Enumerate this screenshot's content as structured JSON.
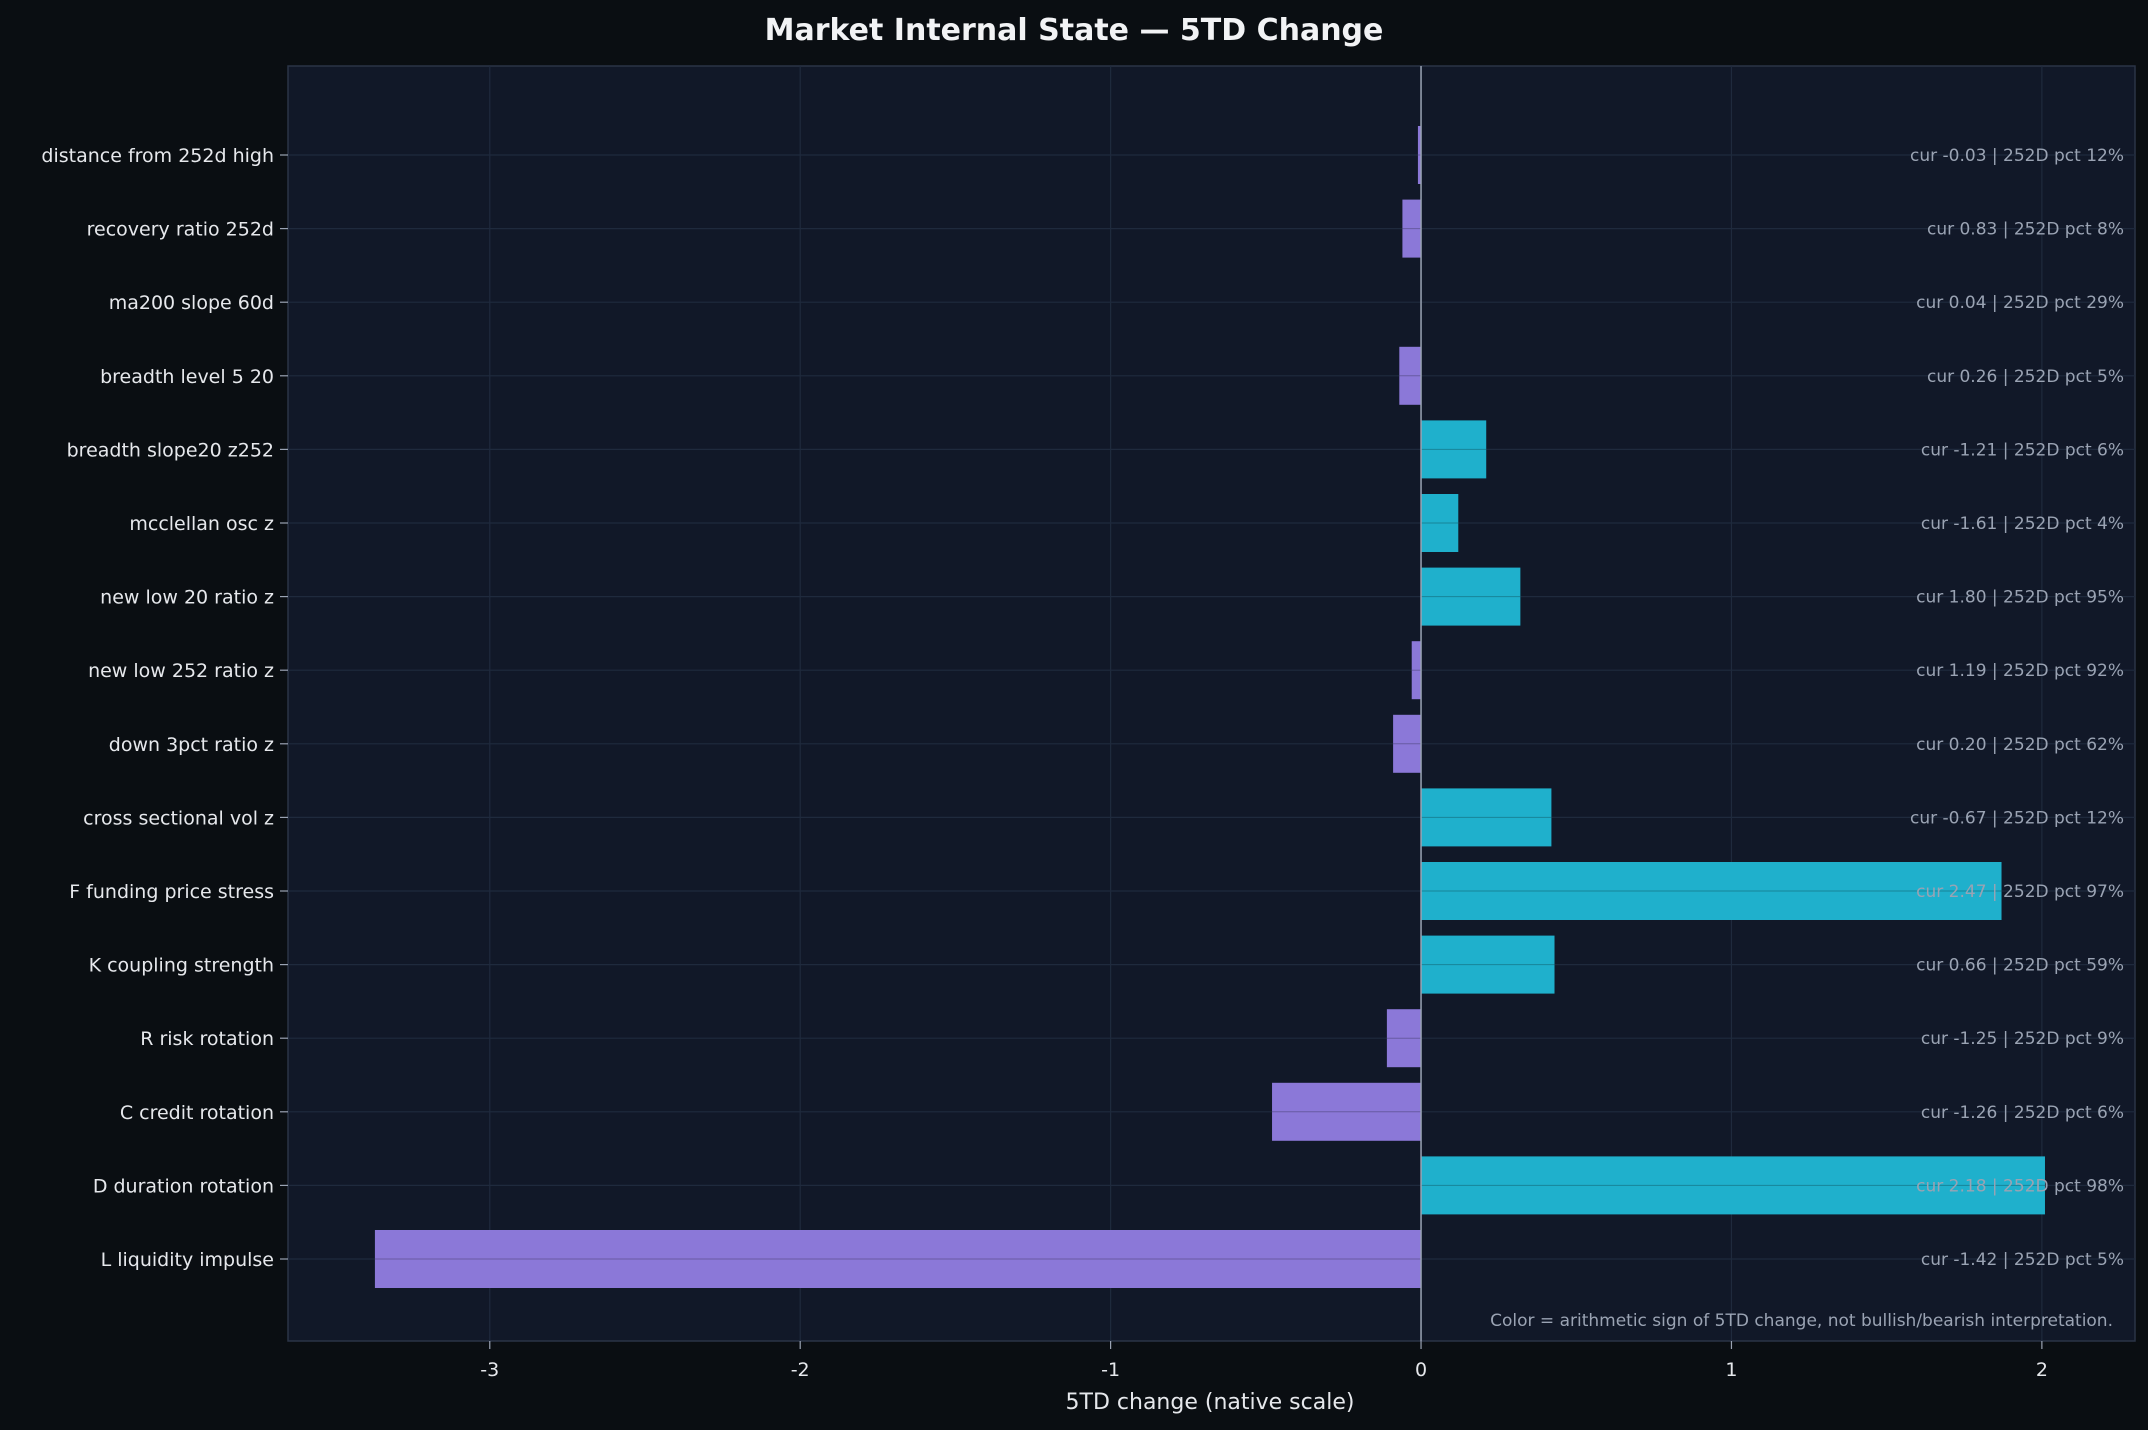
{
  "chart_data": {
    "type": "bar",
    "orientation": "horizontal",
    "title": "Market Internal State — 5TD Change",
    "xlabel": "5TD change (native scale)",
    "ylabel": "",
    "xlim": [
      -3.65,
      2.3
    ],
    "x_ticks": [
      -3,
      -2,
      -1,
      0,
      1,
      2
    ],
    "grid": true,
    "footnote": "Color = arithmetic sign of 5TD change, not bullish/bearish interpretation.",
    "colors": {
      "background": "#0a0e12",
      "plot_background": "#111828",
      "positive": "#1fb0cc",
      "negative": "#8b78d8",
      "grid": "#1f2a3d",
      "text": "#e6e8ec",
      "annotation": "#9aa3b3"
    },
    "categories": [
      "distance from 252d high",
      "recovery ratio 252d",
      "ma200 slope 60d",
      "breadth level 5 20",
      "breadth slope20 z252",
      "mcclellan osc z",
      "new low 20 ratio z",
      "new low 252 ratio z",
      "down 3pct ratio z",
      "cross sectional vol z",
      "F funding price stress",
      "K coupling strength",
      "R risk rotation",
      "C credit rotation",
      "D duration rotation",
      "L liquidity impulse"
    ],
    "values": [
      -0.01,
      -0.06,
      0.0,
      -0.07,
      0.21,
      0.12,
      0.32,
      -0.03,
      -0.09,
      0.42,
      1.87,
      0.43,
      -0.11,
      -0.48,
      2.01,
      -3.37
    ],
    "annotations": [
      "cur -0.03 | 252D pct 12%",
      "cur 0.83 | 252D pct 8%",
      "cur 0.04 | 252D pct 29%",
      "cur 0.26 | 252D pct 5%",
      "cur -1.21 | 252D pct 6%",
      "cur -1.61 | 252D pct 4%",
      "cur 1.80 | 252D pct 95%",
      "cur 1.19 | 252D pct 92%",
      "cur 0.20 | 252D pct 62%",
      "cur -0.67 | 252D pct 12%",
      "cur 2.47 | 252D pct 97%",
      "cur 0.66 | 252D pct 59%",
      "cur -1.25 | 252D pct 9%",
      "cur -1.26 | 252D pct 6%",
      "cur 2.18 | 252D pct 98%",
      "cur -1.42 | 252D pct 5%"
    ]
  }
}
